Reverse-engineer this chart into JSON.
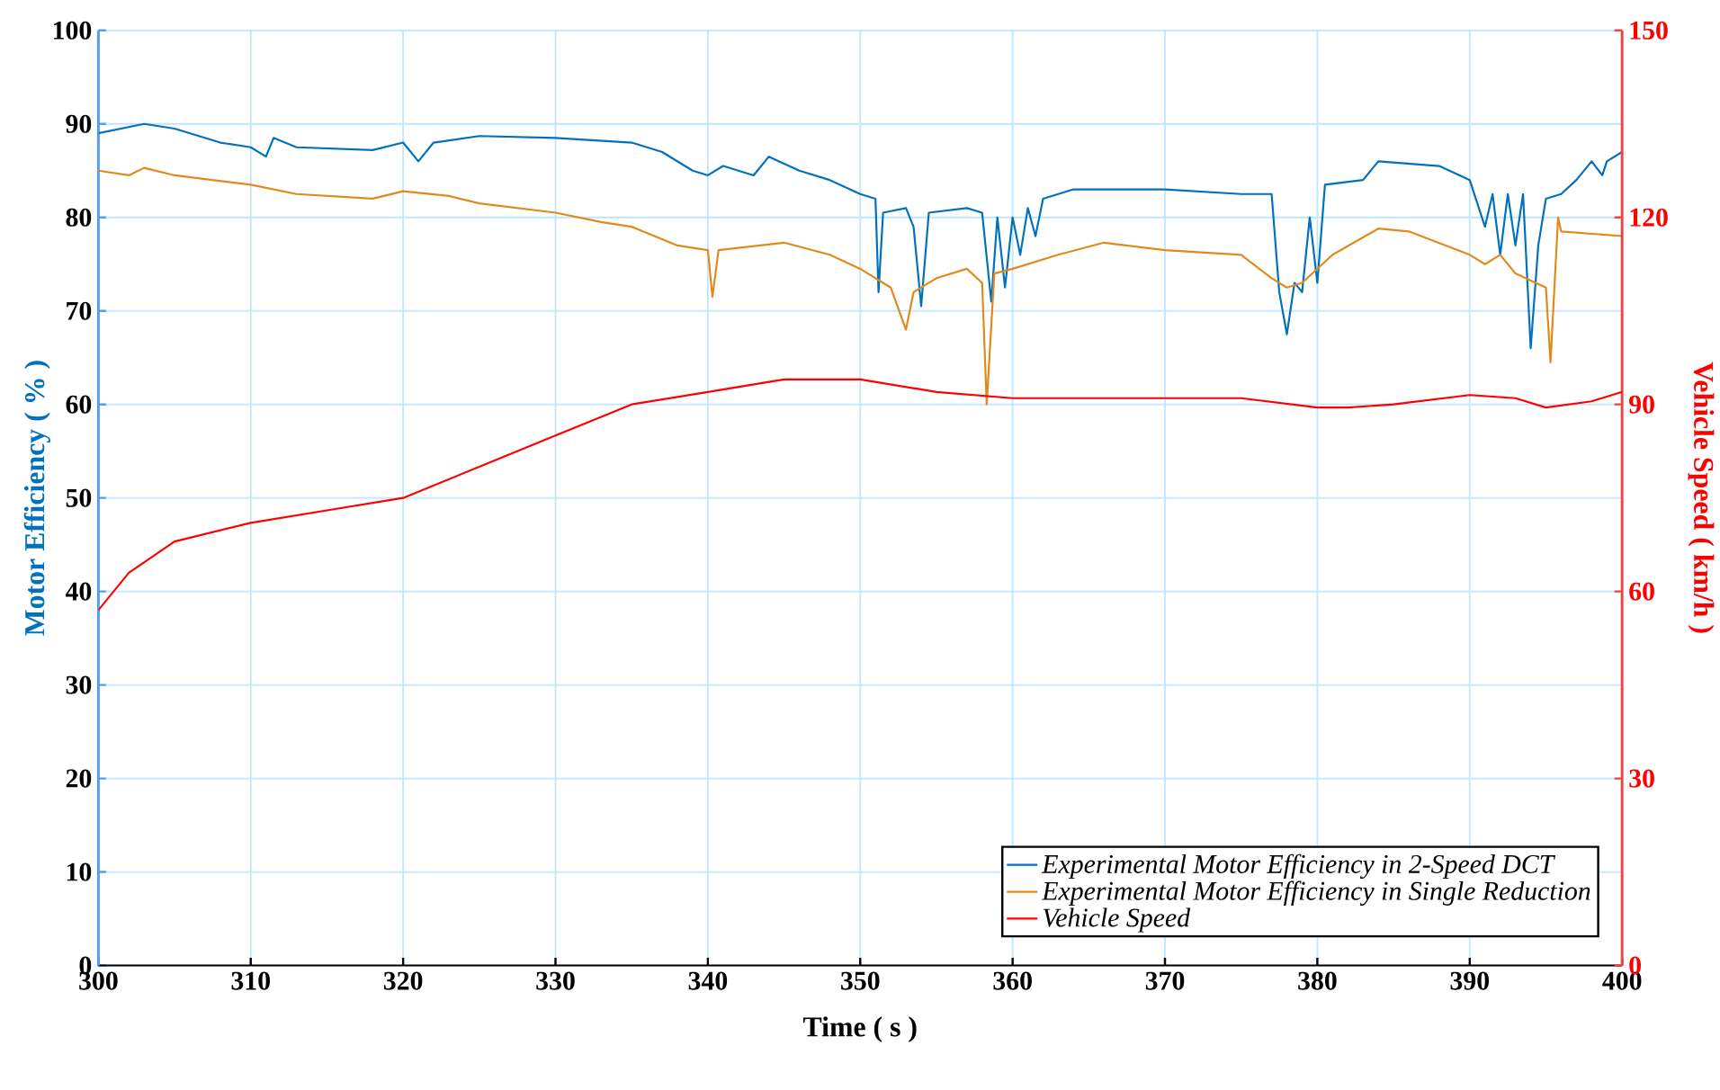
{
  "chart_data": {
    "type": "line",
    "xlabel": "Time ( s )",
    "ylabel": "Motor  Efficiency ( % )",
    "y2label": "Vehicle Speed ( km/h )",
    "xlim": [
      300,
      400
    ],
    "xticks": [
      300,
      310,
      320,
      330,
      340,
      350,
      360,
      370,
      380,
      390,
      400
    ],
    "ylim": [
      0,
      100
    ],
    "yticks": [
      0,
      10,
      20,
      30,
      40,
      50,
      60,
      70,
      80,
      90,
      100
    ],
    "y2lim": [
      0,
      150
    ],
    "y2ticks": [
      0,
      30,
      60,
      90,
      120,
      150
    ],
    "grid": true,
    "legend": "bottom right",
    "series": [
      {
        "name": "Experimental Motor Efficiency in 2-Speed DCT",
        "color": "#0072bd",
        "x": [
          300,
          303,
          305,
          308,
          310,
          311,
          311.5,
          313,
          318,
          320,
          321,
          322,
          325,
          330,
          335,
          337,
          339,
          340,
          341,
          343,
          344,
          346,
          348,
          350,
          351,
          351.2,
          351.5,
          353,
          353.5,
          354,
          354.5,
          357,
          358,
          358.6,
          359,
          359.5,
          360,
          360.5,
          361,
          361.5,
          362,
          364,
          370,
          375,
          377,
          377.5,
          378,
          378.5,
          379,
          379.5,
          380,
          380.5,
          383,
          384,
          388,
          390,
          391,
          391.5,
          392,
          392.5,
          393,
          393.5,
          394,
          394.5,
          395,
          396,
          397,
          398,
          398.7,
          399,
          400
        ],
        "values": [
          89,
          90,
          89.5,
          88,
          87.5,
          86.5,
          88.5,
          87.5,
          87.2,
          88,
          86,
          88,
          88.7,
          88.5,
          88,
          87,
          85,
          84.5,
          85.5,
          84.5,
          86.5,
          85,
          84,
          82.5,
          82,
          72,
          80.5,
          81,
          79,
          70.5,
          80.5,
          81,
          80.5,
          71,
          80,
          72.5,
          80,
          76,
          81,
          78,
          82,
          83,
          83,
          82.5,
          82.5,
          72,
          67.5,
          73,
          72,
          80,
          73,
          83.5,
          84,
          86,
          85.5,
          84,
          79,
          82.5,
          76,
          82.5,
          77,
          82.5,
          66,
          77,
          82,
          82.5,
          84,
          86,
          84.5,
          86,
          87
        ]
      },
      {
        "name": "Experimental Motor Efficiency in Single Reduction",
        "color": "#e08a1e",
        "x": [
          300,
          302,
          303,
          305,
          310,
          313,
          318,
          320,
          323,
          325,
          330,
          333,
          335,
          338,
          340,
          340.3,
          340.7,
          345,
          348,
          350,
          352,
          353,
          353.5,
          355,
          357,
          358,
          358.3,
          358.8,
          360,
          363,
          366,
          370,
          375,
          377,
          378,
          379,
          381,
          384,
          386,
          390,
          391,
          392,
          393,
          395,
          395.3,
          395.8,
          396,
          400
        ],
        "values": [
          85,
          84.5,
          85.3,
          84.5,
          83.5,
          82.5,
          82,
          82.8,
          82.3,
          81.5,
          80.5,
          79.5,
          79,
          77,
          76.5,
          71.5,
          76.5,
          77.3,
          76,
          74.5,
          72.5,
          68,
          72,
          73.5,
          74.5,
          73,
          60,
          74,
          74.5,
          76,
          77.3,
          76.5,
          76,
          73.5,
          72.5,
          73,
          76,
          78.8,
          78.5,
          76,
          75,
          76,
          74,
          72.5,
          64.5,
          80,
          78.5,
          78
        ]
      },
      {
        "name": "Vehicle Speed",
        "color": "#ff0000",
        "axis": "y2",
        "x": [
          300,
          302,
          305,
          310,
          315,
          320,
          325,
          330,
          335,
          340,
          345,
          350,
          355,
          360,
          365,
          370,
          375,
          380,
          382,
          385,
          390,
          393,
          395,
          398,
          400
        ],
        "values": [
          57,
          63,
          68,
          71,
          73,
          75,
          80,
          85,
          90,
          92,
          94,
          94,
          92,
          91,
          91,
          91,
          91,
          89.5,
          89.5,
          90,
          91.5,
          91,
          89.5,
          90.5,
          92
        ]
      }
    ]
  }
}
